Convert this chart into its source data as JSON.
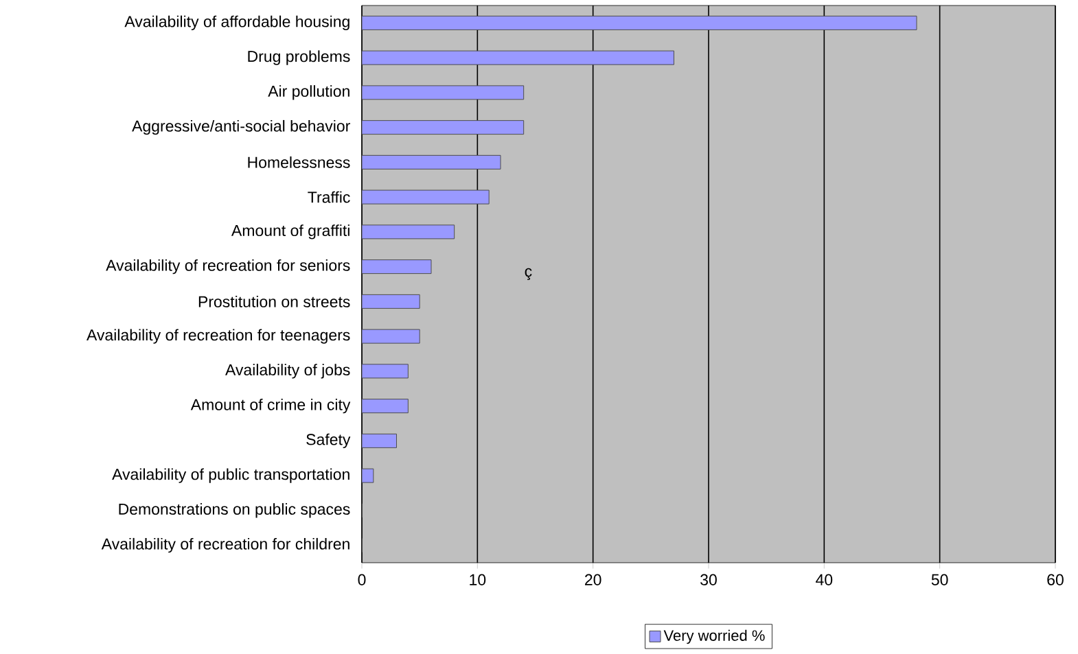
{
  "chart_data": {
    "type": "bar",
    "orientation": "horizontal",
    "categories": [
      "Availability of affordable housing",
      "Drug problems",
      "Air pollution",
      "Aggressive/anti-social behavior",
      "Homelessness",
      "Traffic",
      "Amount of graffiti",
      "Availability of recreation for seniors",
      "Prostitution on streets",
      "Availability of recreation for teenagers",
      "Availability of jobs",
      "Amount of crime in city",
      "Safety",
      "Availability of public transportation",
      "Demonstrations on public spaces",
      "Availability of recreation for children"
    ],
    "series": [
      {
        "name": "Very worried %",
        "color": "#9999ff",
        "values": [
          48,
          27,
          14,
          14,
          12,
          11,
          8,
          6,
          5,
          5,
          4,
          4,
          3,
          1,
          0,
          0
        ]
      }
    ],
    "xlim": [
      0,
      60
    ],
    "xticks": [
      0,
      10,
      20,
      30,
      40,
      50,
      60
    ],
    "grid": "x",
    "legend": "bottom",
    "annotations": [
      "ç"
    ]
  }
}
